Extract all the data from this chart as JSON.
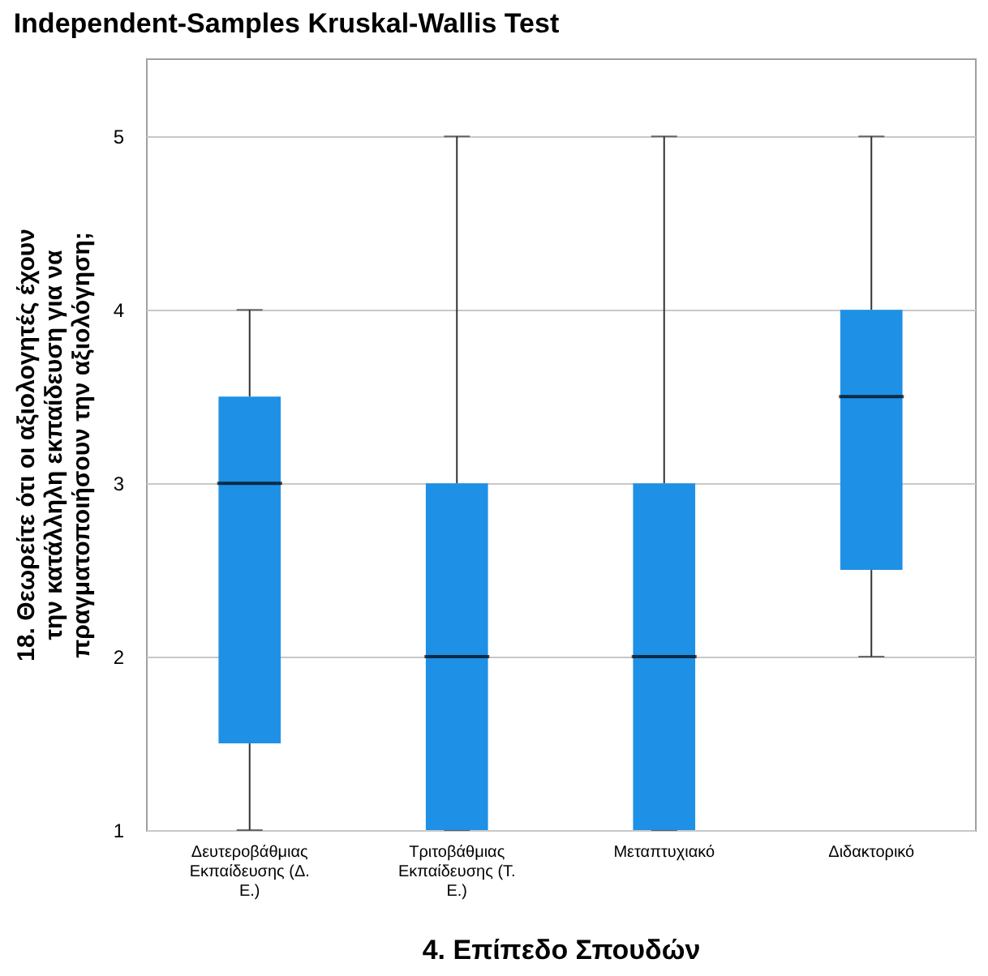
{
  "chart_data": {
    "type": "box",
    "title": "Independent-Samples Kruskal-Wallis Test",
    "xlabel": "4. Επίπεδο Σπουδών",
    "ylabel": "18. Θεωρείτε ότι οι αξιολογητές έχουν την κατάλληλη εκπαίδευση για να πραγματοποιήσουν την αξιολόγηση;",
    "categories": [
      "Δευτεροβάθμιας Εκπαίδευσης (Δ. Ε.)",
      "Τριτοβάθμιας Εκπαίδευσης (Τ. Ε.)",
      "Μεταπτυχιακό",
      "Διδακτορικό"
    ],
    "color": "#1e90e6",
    "boxes": [
      {
        "low": 1,
        "q1": 1.5,
        "median": 3,
        "q3": 3.5,
        "high": 4
      },
      {
        "low": 1,
        "q1": 1,
        "median": 2,
        "q3": 3,
        "high": 5
      },
      {
        "low": 1,
        "q1": 1,
        "median": 2,
        "q3": 3,
        "high": 5
      },
      {
        "low": 2,
        "q1": 2.5,
        "median": 3.5,
        "q3": 4,
        "high": 5
      }
    ],
    "ylim": [
      1,
      5.45
    ],
    "yticks": [
      1,
      2,
      3,
      4,
      5
    ],
    "grid": "y"
  }
}
